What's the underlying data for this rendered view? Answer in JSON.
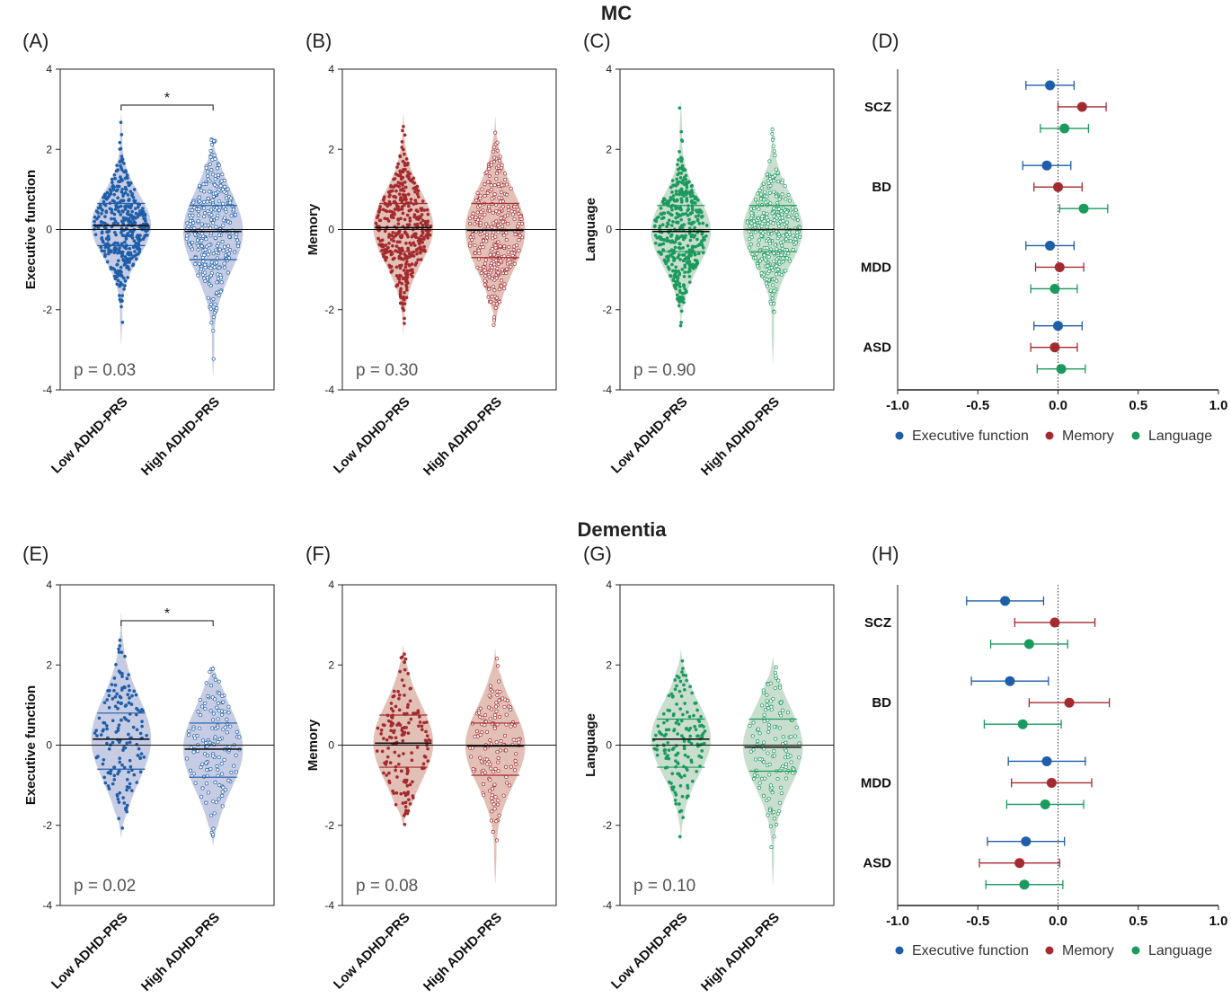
{
  "colors": {
    "exec": "#1f5ea8",
    "exec_fill": "#c3c9e3",
    "mem": "#a32a2f",
    "mem_fill": "#e2bdb2",
    "lang": "#1a9a5c",
    "lang_fill": "#c6dccb",
    "axis": "#222222"
  },
  "sections": [
    {
      "title": "MC"
    },
    {
      "title": "Dementia"
    }
  ],
  "chart_data": [
    {
      "id": "A",
      "label": "(A)",
      "type": "violin",
      "measure": "exec",
      "ylabel": "Executive function",
      "ylim": [
        -4,
        4
      ],
      "yticks": [
        -4,
        -2,
        0,
        2,
        4
      ],
      "categories": [
        "Low ADHD-PRS",
        "High ADHD-PRS"
      ],
      "groups": [
        {
          "min": -2.85,
          "max": 2.9,
          "median": 0.1,
          "q1": -0.4,
          "q3": 0.65,
          "n": 420
        },
        {
          "min": -3.65,
          "max": 2.3,
          "median": -0.05,
          "q1": -0.75,
          "q3": 0.6,
          "n": 330
        }
      ],
      "pvalue": "p = 0.03",
      "significance": "*"
    },
    {
      "id": "B",
      "label": "(B)",
      "type": "violin",
      "measure": "mem",
      "ylabel": "Memory",
      "ylim": [
        -4,
        4
      ],
      "yticks": [
        -4,
        -2,
        0,
        2,
        4
      ],
      "categories": [
        "Low ADHD-PRS",
        "High ADHD-PRS"
      ],
      "groups": [
        {
          "min": -2.6,
          "max": 2.9,
          "median": 0.05,
          "q1": -0.55,
          "q3": 0.65,
          "n": 420
        },
        {
          "min": -2.4,
          "max": 2.8,
          "median": -0.02,
          "q1": -0.7,
          "q3": 0.65,
          "n": 330
        }
      ],
      "pvalue": "p = 0.30",
      "significance": ""
    },
    {
      "id": "C",
      "label": "(C)",
      "type": "violin",
      "measure": "lang",
      "ylabel": "Language",
      "ylim": [
        -4,
        4
      ],
      "yticks": [
        -4,
        -2,
        0,
        2,
        4
      ],
      "categories": [
        "Low ADHD-PRS",
        "High ADHD-PRS"
      ],
      "groups": [
        {
          "min": -2.5,
          "max": 3.2,
          "median": -0.05,
          "q1": -0.55,
          "q3": 0.6,
          "n": 420
        },
        {
          "min": -3.35,
          "max": 2.6,
          "median": 0.0,
          "q1": -0.55,
          "q3": 0.6,
          "n": 330
        }
      ],
      "pvalue": "p = 0.90",
      "significance": ""
    },
    {
      "id": "D",
      "label": "(D)",
      "type": "forest",
      "xlim": [
        -1,
        1
      ],
      "xticks": [
        -1.0,
        -0.5,
        0.0,
        0.5,
        1.0
      ],
      "xtick_labels": [
        "-1.0",
        "-0.5",
        "0.0",
        "0.5",
        "1.0"
      ],
      "categories": [
        "SCZ",
        "BD",
        "MDD",
        "ASD"
      ],
      "series": [
        {
          "name": "Executive function",
          "color": "exec",
          "estimates": [
            -0.05,
            -0.07,
            -0.05,
            0.0
          ],
          "lower": [
            -0.2,
            -0.22,
            -0.2,
            -0.15
          ],
          "upper": [
            0.1,
            0.08,
            0.1,
            0.15
          ]
        },
        {
          "name": "Memory",
          "color": "mem",
          "estimates": [
            0.15,
            0.0,
            0.01,
            -0.02
          ],
          "lower": [
            0.0,
            -0.15,
            -0.14,
            -0.17
          ],
          "upper": [
            0.3,
            0.15,
            0.16,
            0.12
          ]
        },
        {
          "name": "Language",
          "color": "lang",
          "estimates": [
            0.04,
            0.16,
            -0.02,
            0.02
          ],
          "lower": [
            -0.11,
            0.01,
            -0.17,
            -0.13
          ],
          "upper": [
            0.19,
            0.31,
            0.12,
            0.17
          ]
        }
      ]
    },
    {
      "id": "E",
      "label": "(E)",
      "type": "violin",
      "measure": "exec",
      "ylabel": "Executive function",
      "ylim": [
        -4,
        4
      ],
      "yticks": [
        -4,
        -2,
        0,
        2,
        4
      ],
      "categories": [
        "Low ADHD-PRS",
        "High ADHD-PRS"
      ],
      "groups": [
        {
          "min": -2.3,
          "max": 3.3,
          "median": 0.15,
          "q1": -0.6,
          "q3": 0.8,
          "n": 160
        },
        {
          "min": -2.5,
          "max": 2.0,
          "median": -0.1,
          "q1": -0.8,
          "q3": 0.55,
          "n": 140
        }
      ],
      "pvalue": "p = 0.02",
      "significance": "*"
    },
    {
      "id": "F",
      "label": "(F)",
      "type": "violin",
      "measure": "mem",
      "ylabel": "Memory",
      "ylim": [
        -4,
        4
      ],
      "yticks": [
        -4,
        -2,
        0,
        2,
        4
      ],
      "categories": [
        "Low ADHD-PRS",
        "High ADHD-PRS"
      ],
      "groups": [
        {
          "min": -2.0,
          "max": 2.5,
          "median": 0.05,
          "q1": -0.55,
          "q3": 0.75,
          "n": 160
        },
        {
          "min": -3.45,
          "max": 2.4,
          "median": -0.02,
          "q1": -0.75,
          "q3": 0.55,
          "n": 140
        }
      ],
      "pvalue": "p = 0.08",
      "significance": ""
    },
    {
      "id": "G",
      "label": "(G)",
      "type": "violin",
      "measure": "lang",
      "ylabel": "Language",
      "ylim": [
        -4,
        4
      ],
      "yticks": [
        -4,
        -2,
        0,
        2,
        4
      ],
      "categories": [
        "Low ADHD-PRS",
        "High ADHD-PRS"
      ],
      "groups": [
        {
          "min": -2.4,
          "max": 2.4,
          "median": 0.15,
          "q1": -0.55,
          "q3": 0.65,
          "n": 160
        },
        {
          "min": -3.5,
          "max": 2.2,
          "median": -0.05,
          "q1": -0.65,
          "q3": 0.65,
          "n": 140
        }
      ],
      "pvalue": "p = 0.10",
      "significance": ""
    },
    {
      "id": "H",
      "label": "(H)",
      "type": "forest",
      "xlim": [
        -1,
        1
      ],
      "xticks": [
        -1.0,
        -0.5,
        0.0,
        0.5,
        1.0
      ],
      "xtick_labels": [
        "-1.0",
        "-0.5",
        "0.0",
        "0.5",
        "1.0"
      ],
      "categories": [
        "SCZ",
        "BD",
        "MDD",
        "ASD"
      ],
      "series": [
        {
          "name": "Executive function",
          "color": "exec",
          "estimates": [
            -0.33,
            -0.3,
            -0.07,
            -0.2
          ],
          "lower": [
            -0.57,
            -0.54,
            -0.31,
            -0.44
          ],
          "upper": [
            -0.09,
            -0.06,
            0.17,
            0.04
          ]
        },
        {
          "name": "Memory",
          "color": "mem",
          "estimates": [
            -0.02,
            0.07,
            -0.04,
            -0.24
          ],
          "lower": [
            -0.27,
            -0.18,
            -0.29,
            -0.49
          ],
          "upper": [
            0.23,
            0.32,
            0.21,
            0.01
          ]
        },
        {
          "name": "Language",
          "color": "lang",
          "estimates": [
            -0.18,
            -0.22,
            -0.08,
            -0.21
          ],
          "lower": [
            -0.42,
            -0.46,
            -0.32,
            -0.45
          ],
          "upper": [
            0.06,
            0.02,
            0.16,
            0.03
          ]
        }
      ]
    }
  ]
}
